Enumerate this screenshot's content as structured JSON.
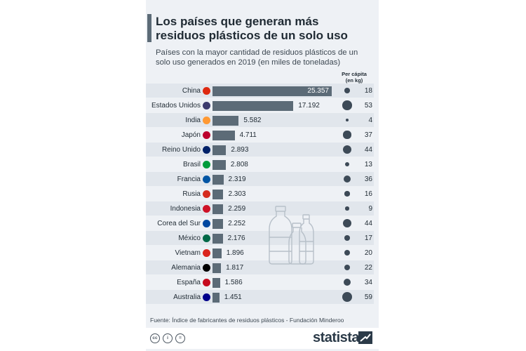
{
  "header": {
    "title_line1": "Los países que generan más",
    "title_line2": "residuos plásticos de un solo uso",
    "subtitle_line1": "Países con la mayor cantidad de residuos plásticos de un",
    "subtitle_line2": "solo uso generados en 2019 (en miles de toneladas)",
    "percapita_line1": "Per cápita",
    "percapita_line2": "(en kg)"
  },
  "chart_data": {
    "type": "bar",
    "orientation": "horizontal",
    "title": "Los países que generan más residuos plásticos de un solo uso",
    "subtitle": "Países con la mayor cantidad de residuos plásticos de un solo uso generados en 2019 (en miles de toneladas)",
    "categories": [
      "China",
      "Estados Unidos",
      "India",
      "Japón",
      "Reino Unido",
      "Brasil",
      "Francia",
      "Rusia",
      "Indonesia",
      "Corea del Sur",
      "México",
      "Vietnam",
      "Alemania",
      "España",
      "Australia"
    ],
    "values": [
      25357,
      17192,
      5582,
      4711,
      2893,
      2808,
      2319,
      2303,
      2259,
      2252,
      2176,
      1896,
      1817,
      1586,
      1451
    ],
    "value_labels": [
      "25.357",
      "17.192",
      "5.582",
      "4.711",
      "2.893",
      "2.808",
      "2.319",
      "2.303",
      "2.259",
      "2.252",
      "2.176",
      "1.896",
      "1.817",
      "1.586",
      "1.451"
    ],
    "per_capita_kg": [
      18,
      53,
      4,
      37,
      44,
      13,
      36,
      16,
      9,
      44,
      17,
      20,
      22,
      34,
      59
    ],
    "per_capita_labels": [
      "18",
      "53",
      "4",
      "37",
      "44",
      "13",
      "36",
      "16",
      "9",
      "44",
      "17",
      "20",
      "22",
      "34",
      "59"
    ],
    "flag_colors": [
      "#de2910",
      "#3c3b6e",
      "#ff9933",
      "#bc002d",
      "#012169",
      "#009c3b",
      "#0055a4",
      "#d52b1e",
      "#ce1126",
      "#0047a0",
      "#006847",
      "#da251d",
      "#000000",
      "#c60b1e",
      "#00008b"
    ],
    "bar_color": "#5c6b77",
    "dot_color": "#3d4a57",
    "xlim": [
      0,
      25357
    ]
  },
  "footer": {
    "source": "Fuente: Índice de fabricantes de residuos plásticos - Fundación Minderoo",
    "brand": "statista",
    "license_icons": [
      "cc-icon",
      "by-icon",
      "nd-icon"
    ],
    "license_labels": [
      "cc",
      "i",
      "="
    ]
  }
}
